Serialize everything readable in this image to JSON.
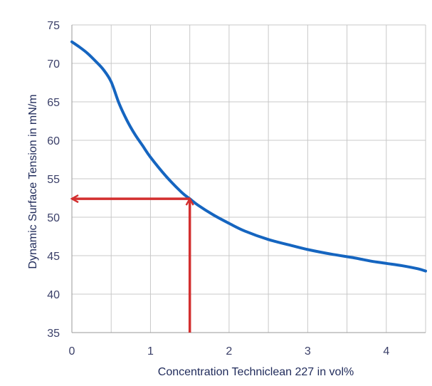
{
  "chart_data": {
    "type": "line",
    "xlabel": "Concentration Techniclean 227 in vol%",
    "ylabel": "Dynamic Surface Tension in mN/m",
    "xlim": [
      0,
      4.5
    ],
    "ylim": [
      35,
      75
    ],
    "x_ticks": [
      "0",
      "1",
      "2",
      "3",
      "4"
    ],
    "y_ticks": [
      "35",
      "40",
      "45",
      "50",
      "55",
      "60",
      "65",
      "70",
      "75"
    ],
    "grid": true,
    "series": [
      {
        "color": "#1565c0",
        "points": [
          [
            0,
            72.8
          ],
          [
            0.1,
            72.1
          ],
          [
            0.2,
            71.3
          ],
          [
            0.3,
            70.3
          ],
          [
            0.4,
            69.2
          ],
          [
            0.5,
            67.6
          ],
          [
            0.6,
            64.8
          ],
          [
            0.7,
            62.6
          ],
          [
            0.8,
            60.8
          ],
          [
            0.9,
            59.3
          ],
          [
            1.0,
            57.8
          ],
          [
            1.2,
            55.3
          ],
          [
            1.4,
            53.2
          ],
          [
            1.5,
            52.4
          ],
          [
            1.6,
            51.6
          ],
          [
            1.8,
            50.3
          ],
          [
            2.0,
            49.2
          ],
          [
            2.2,
            48.2
          ],
          [
            2.5,
            47.1
          ],
          [
            2.8,
            46.3
          ],
          [
            3.0,
            45.8
          ],
          [
            3.3,
            45.2
          ],
          [
            3.6,
            44.7
          ],
          [
            3.8,
            44.3
          ],
          [
            4.0,
            44.0
          ],
          [
            4.2,
            43.7
          ],
          [
            4.4,
            43.3
          ],
          [
            4.5,
            43.0
          ]
        ]
      }
    ],
    "annotations": [
      {
        "type": "arrow",
        "color": "#d32f2f",
        "from": [
          1.5,
          35
        ],
        "to": [
          1.5,
          52.4
        ]
      },
      {
        "type": "arrow",
        "color": "#d32f2f",
        "from": [
          1.5,
          52.4
        ],
        "to": [
          0,
          52.4
        ]
      }
    ]
  }
}
